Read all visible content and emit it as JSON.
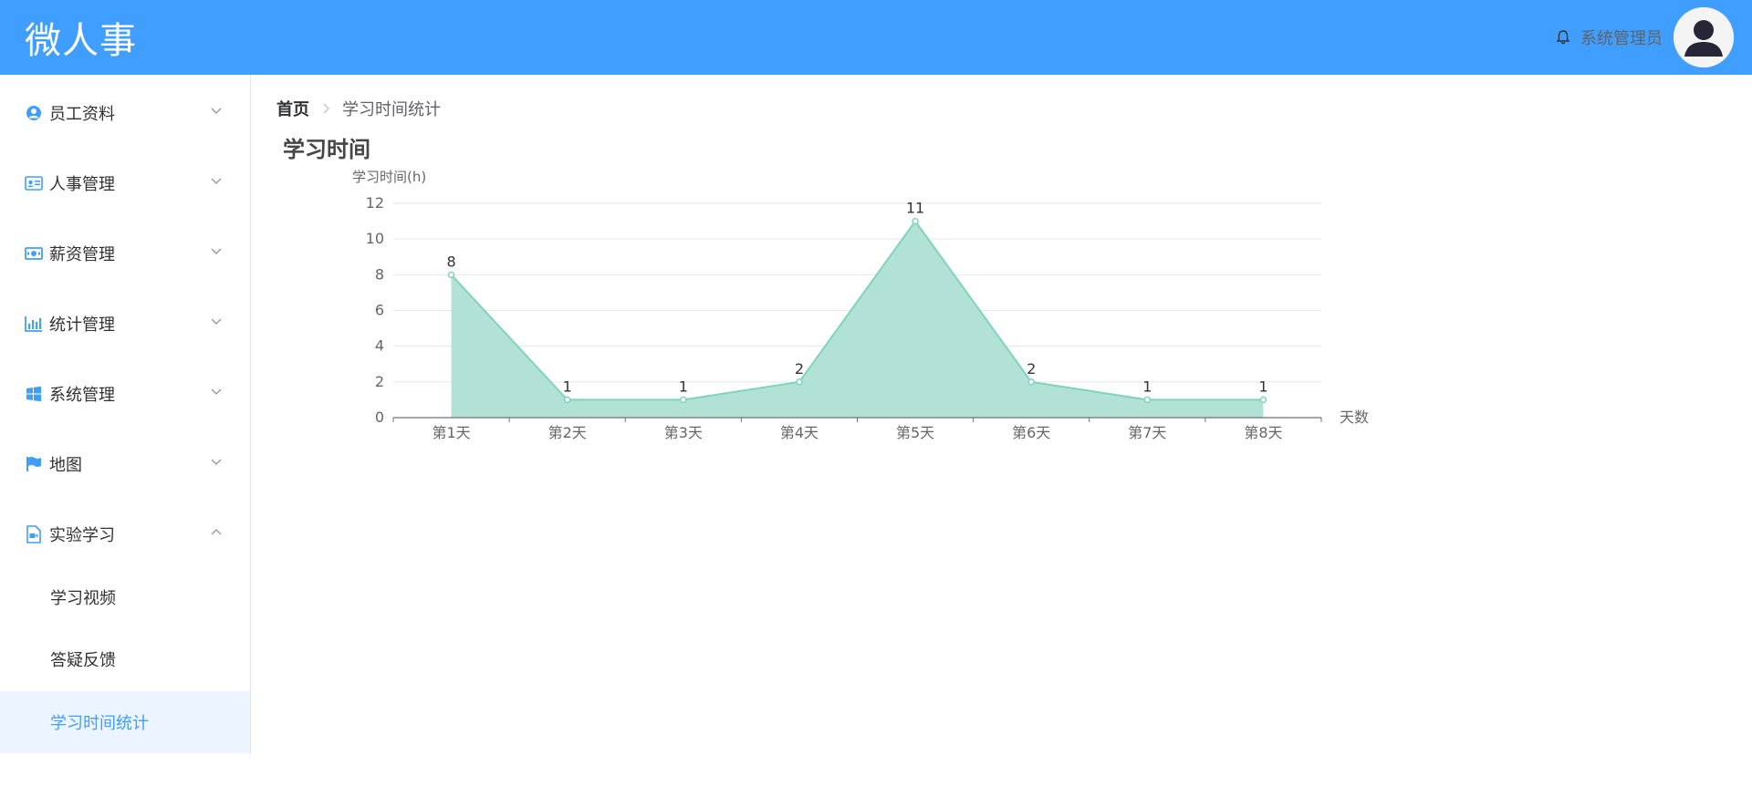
{
  "app": {
    "title": "微人事"
  },
  "header": {
    "user_name": "系统管理员"
  },
  "sidebar": {
    "items": [
      {
        "label": "员工资料",
        "icon": "user-circle-icon",
        "expanded": false
      },
      {
        "label": "人事管理",
        "icon": "id-card-icon",
        "expanded": false
      },
      {
        "label": "薪资管理",
        "icon": "money-icon",
        "expanded": false
      },
      {
        "label": "统计管理",
        "icon": "bar-chart-icon",
        "expanded": false
      },
      {
        "label": "系统管理",
        "icon": "windows-icon",
        "expanded": false
      },
      {
        "label": "地图",
        "icon": "flag-icon",
        "expanded": false
      },
      {
        "label": "实验学习",
        "icon": "video-file-icon",
        "expanded": true
      }
    ],
    "sub_items": [
      {
        "label": "学习视频",
        "active": false
      },
      {
        "label": "答疑反馈",
        "active": false
      },
      {
        "label": "学习时间统计",
        "active": true
      }
    ]
  },
  "breadcrumb": {
    "home": "首页",
    "current": "学习时间统计"
  },
  "colors": {
    "accent": "#409eff",
    "series": "#7fd4bb",
    "area": "#aee0d3"
  },
  "chart_data": {
    "type": "area",
    "title": "学习时间",
    "ylabel": "学习时间(h)",
    "xlabel": "天数",
    "categories": [
      "第1天",
      "第2天",
      "第3天",
      "第4天",
      "第5天",
      "第6天",
      "第7天",
      "第8天"
    ],
    "values": [
      8,
      1,
      1,
      2,
      11,
      2,
      1,
      1
    ],
    "yticks": [
      "0",
      "2",
      "4",
      "6",
      "8",
      "10",
      "12"
    ],
    "ylim": [
      0,
      12
    ],
    "grid": true,
    "data_labels": true
  }
}
